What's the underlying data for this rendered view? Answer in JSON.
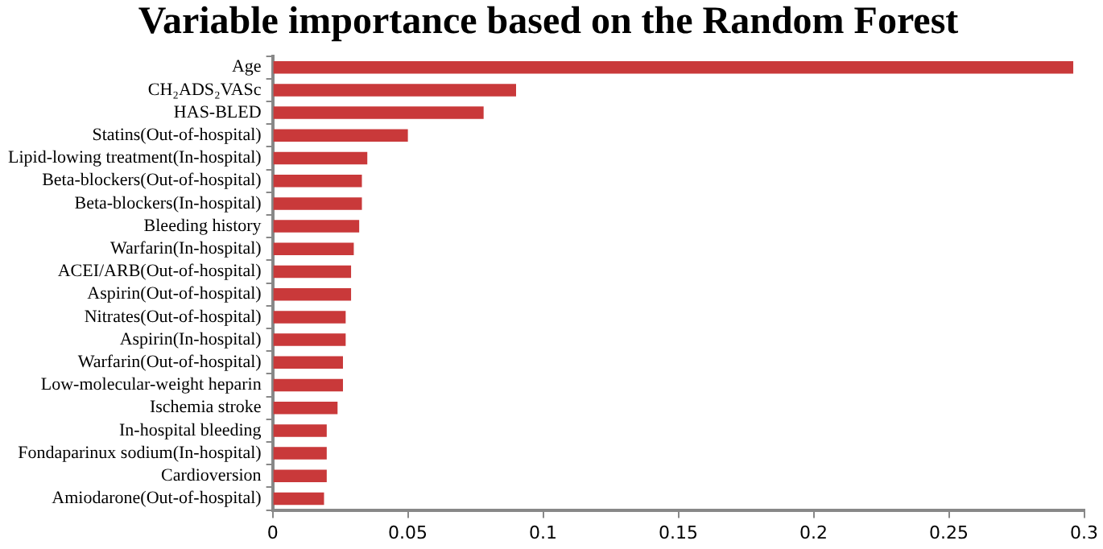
{
  "chart_data": {
    "type": "bar",
    "orientation": "horizontal",
    "title": "Variable importance based on the Random Forest",
    "categories": [
      "Age",
      "CH₂ADS₂VASc",
      "HAS-BLED",
      "Statins(Out-of-hospital)",
      "Lipid-lowing treatment(In-hospital)",
      "Beta-blockers(Out-of-hospital)",
      "Beta-blockers(In-hospital)",
      "Bleeding history",
      "Warfarin(In-hospital)",
      "ACEI/ARB(Out-of-hospital)",
      "Aspirin(Out-of-hospital)",
      "Nitrates(Out-of-hospital)",
      "Aspirin(In-hospital)",
      "Warfarin(Out-of-hospital)",
      "Low-molecular-weight heparin",
      "Ischemia stroke",
      "In-hospital bleeding",
      "Fondaparinux sodium(In-hospital)",
      "Cardioversion",
      "Amiodarone(Out-of-hospital)"
    ],
    "values": [
      0.296,
      0.09,
      0.078,
      0.05,
      0.035,
      0.033,
      0.033,
      0.032,
      0.03,
      0.029,
      0.029,
      0.027,
      0.027,
      0.026,
      0.026,
      0.024,
      0.02,
      0.02,
      0.02,
      0.019
    ],
    "color": "#c9393a",
    "xlim": [
      0,
      0.3
    ],
    "xticks": [
      0,
      0.05,
      0.1,
      0.15,
      0.2,
      0.25,
      0.3
    ],
    "grid": false,
    "legend": false
  }
}
